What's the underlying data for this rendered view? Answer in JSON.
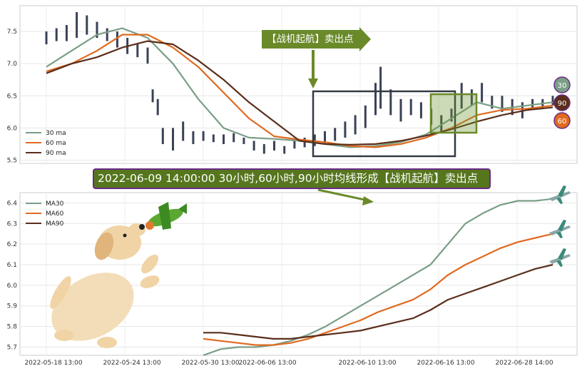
{
  "chart_data": [
    {
      "type": "line",
      "panel": "top",
      "ylim": [
        5.45,
        7.9
      ],
      "yticks": [
        "5.5",
        "6.0",
        "6.5",
        "7.0",
        "7.5"
      ],
      "legend_position": "lower-left",
      "series": [
        {
          "name": "30 ma",
          "color": "#7a9e86",
          "x": [
            0,
            5,
            10,
            15,
            20,
            25,
            30,
            35,
            40,
            45,
            50,
            55,
            60,
            65,
            70,
            75,
            80,
            85,
            90,
            95,
            100
          ],
          "values": [
            6.95,
            7.2,
            7.45,
            7.55,
            7.4,
            7.0,
            6.45,
            6.0,
            5.85,
            5.83,
            5.8,
            5.75,
            5.7,
            5.72,
            5.78,
            5.9,
            6.15,
            6.4,
            6.3,
            6.35,
            6.4
          ]
        },
        {
          "name": "60 ma",
          "color": "#e06a20",
          "x": [
            0,
            5,
            10,
            15,
            20,
            25,
            30,
            35,
            40,
            45,
            50,
            55,
            60,
            65,
            70,
            75,
            80,
            85,
            90,
            95,
            100
          ],
          "values": [
            6.88,
            7.0,
            7.2,
            7.45,
            7.45,
            7.25,
            6.95,
            6.55,
            6.15,
            5.87,
            5.82,
            5.78,
            5.72,
            5.7,
            5.75,
            5.85,
            6.0,
            6.2,
            6.28,
            6.3,
            6.35
          ]
        },
        {
          "name": "90 ma",
          "color": "#5a2e1a",
          "x": [
            0,
            5,
            10,
            15,
            20,
            25,
            30,
            35,
            40,
            45,
            50,
            55,
            60,
            65,
            70,
            75,
            80,
            85,
            90,
            95,
            100
          ],
          "values": [
            6.85,
            7.0,
            7.1,
            7.25,
            7.35,
            7.3,
            7.05,
            6.75,
            6.4,
            6.1,
            5.8,
            5.75,
            5.74,
            5.75,
            5.8,
            5.88,
            5.98,
            6.1,
            6.2,
            6.28,
            6.32
          ]
        }
      ],
      "candles": [
        {
          "x": 0,
          "low": 7.3,
          "high": 7.5
        },
        {
          "x": 2,
          "low": 7.35,
          "high": 7.55
        },
        {
          "x": 4,
          "low": 7.35,
          "high": 7.6
        },
        {
          "x": 6,
          "low": 7.4,
          "high": 7.8
        },
        {
          "x": 8,
          "low": 7.45,
          "high": 7.75
        },
        {
          "x": 10,
          "low": 7.4,
          "high": 7.65
        },
        {
          "x": 12,
          "low": 7.35,
          "high": 7.55
        },
        {
          "x": 14,
          "low": 7.25,
          "high": 7.5
        },
        {
          "x": 16,
          "low": 7.15,
          "high": 7.4
        },
        {
          "x": 18,
          "low": 7.1,
          "high": 7.3
        },
        {
          "x": 20,
          "low": 7.0,
          "high": 7.25
        },
        {
          "x": 21,
          "low": 6.4,
          "high": 6.6
        },
        {
          "x": 22,
          "low": 6.2,
          "high": 6.45
        },
        {
          "x": 23,
          "low": 5.75,
          "high": 6.0
        },
        {
          "x": 25,
          "low": 5.65,
          "high": 6.0
        },
        {
          "x": 27,
          "low": 5.8,
          "high": 6.1
        },
        {
          "x": 29,
          "low": 5.75,
          "high": 5.95
        },
        {
          "x": 31,
          "low": 5.8,
          "high": 5.95
        },
        {
          "x": 33,
          "low": 5.78,
          "high": 5.9
        },
        {
          "x": 35,
          "low": 5.75,
          "high": 5.9
        },
        {
          "x": 37,
          "low": 5.78,
          "high": 5.92
        },
        {
          "x": 39,
          "low": 5.75,
          "high": 5.85
        },
        {
          "x": 41,
          "low": 5.65,
          "high": 5.8
        },
        {
          "x": 43,
          "low": 5.6,
          "high": 5.75
        },
        {
          "x": 45,
          "low": 5.65,
          "high": 5.8
        },
        {
          "x": 47,
          "low": 5.6,
          "high": 5.72
        },
        {
          "x": 49,
          "low": 5.68,
          "high": 5.82
        },
        {
          "x": 51,
          "low": 5.7,
          "high": 5.85
        },
        {
          "x": 53,
          "low": 5.72,
          "high": 5.9
        },
        {
          "x": 55,
          "low": 5.75,
          "high": 5.95
        },
        {
          "x": 57,
          "low": 5.8,
          "high": 6.0
        },
        {
          "x": 59,
          "low": 5.85,
          "high": 6.1
        },
        {
          "x": 61,
          "low": 5.9,
          "high": 6.2
        },
        {
          "x": 63,
          "low": 6.0,
          "high": 6.35
        },
        {
          "x": 65,
          "low": 6.2,
          "high": 6.7
        },
        {
          "x": 66,
          "low": 6.3,
          "high": 6.95
        },
        {
          "x": 68,
          "low": 6.2,
          "high": 6.6
        },
        {
          "x": 70,
          "low": 6.1,
          "high": 6.45
        },
        {
          "x": 72,
          "low": 6.2,
          "high": 6.45
        },
        {
          "x": 74,
          "low": 6.15,
          "high": 6.4
        },
        {
          "x": 76,
          "low": 6.05,
          "high": 6.3
        },
        {
          "x": 78,
          "low": 5.95,
          "high": 6.2
        },
        {
          "x": 80,
          "low": 6.1,
          "high": 6.3
        },
        {
          "x": 82,
          "low": 6.3,
          "high": 6.7
        },
        {
          "x": 84,
          "low": 6.35,
          "high": 6.6
        },
        {
          "x": 86,
          "low": 6.4,
          "high": 6.7
        },
        {
          "x": 88,
          "low": 6.3,
          "high": 6.5
        },
        {
          "x": 90,
          "low": 6.25,
          "high": 6.5
        },
        {
          "x": 92,
          "low": 6.2,
          "high": 6.45
        },
        {
          "x": 94,
          "low": 6.15,
          "high": 6.4
        },
        {
          "x": 96,
          "low": 6.3,
          "high": 6.45
        },
        {
          "x": 98,
          "low": 6.3,
          "high": 6.45
        },
        {
          "x": 100,
          "low": 6.35,
          "high": 6.5
        }
      ],
      "badges": [
        {
          "label": "30",
          "color": "#7a9e86"
        },
        {
          "label": "90",
          "color": "#5a2e1a"
        },
        {
          "label": "60",
          "color": "#e06a20"
        }
      ]
    },
    {
      "type": "line",
      "panel": "bottom",
      "ylim": [
        5.66,
        6.45
      ],
      "yticks": [
        "5.7",
        "5.8",
        "5.9",
        "6.0",
        "6.1",
        "6.2",
        "6.3",
        "6.4"
      ],
      "xticks": [
        "2022-05-18 13:00",
        "2022-05-24 13:00",
        "2022-05-30 13:00",
        "2022-06-06 13:00",
        "2022-06-10 13:00",
        "2022-06-16 13:00",
        "2022-06-28 14:00"
      ],
      "legend_position": "upper-left",
      "series": [
        {
          "name": "MA30",
          "color": "#7a9e86",
          "x": [
            0,
            5,
            10,
            15,
            20,
            25,
            30,
            35,
            40,
            45,
            50,
            55,
            60,
            65,
            70,
            75,
            80,
            85,
            90,
            95,
            100
          ],
          "values": [
            5.66,
            5.69,
            5.7,
            5.7,
            5.71,
            5.73,
            5.76,
            5.8,
            5.85,
            5.9,
            5.95,
            6.0,
            6.05,
            6.1,
            6.2,
            6.3,
            6.35,
            6.39,
            6.41,
            6.41,
            6.42
          ]
        },
        {
          "name": "MA60",
          "color": "#e06a20",
          "x": [
            0,
            5,
            10,
            15,
            20,
            25,
            30,
            35,
            40,
            45,
            50,
            55,
            60,
            65,
            70,
            75,
            80,
            85,
            90,
            95,
            100
          ],
          "values": [
            5.74,
            5.73,
            5.72,
            5.71,
            5.71,
            5.72,
            5.74,
            5.77,
            5.8,
            5.83,
            5.87,
            5.9,
            5.93,
            5.98,
            6.05,
            6.1,
            6.14,
            6.18,
            6.21,
            6.23,
            6.25
          ]
        },
        {
          "name": "MA90",
          "color": "#5a2e1a",
          "x": [
            0,
            5,
            10,
            15,
            20,
            25,
            30,
            35,
            40,
            45,
            50,
            55,
            60,
            65,
            70,
            75,
            80,
            85,
            90,
            95,
            100
          ],
          "values": [
            5.77,
            5.77,
            5.76,
            5.75,
            5.74,
            5.74,
            5.75,
            5.76,
            5.77,
            5.78,
            5.8,
            5.82,
            5.84,
            5.88,
            5.93,
            5.96,
            5.99,
            6.02,
            6.05,
            6.08,
            6.1
          ]
        }
      ]
    }
  ],
  "annotations": {
    "callout_label": "【战机起航】卖出点",
    "banner_text": "2022-06-09 14:00:00 30小时,60小时,90小时均线形成【战机起航】卖出点"
  }
}
